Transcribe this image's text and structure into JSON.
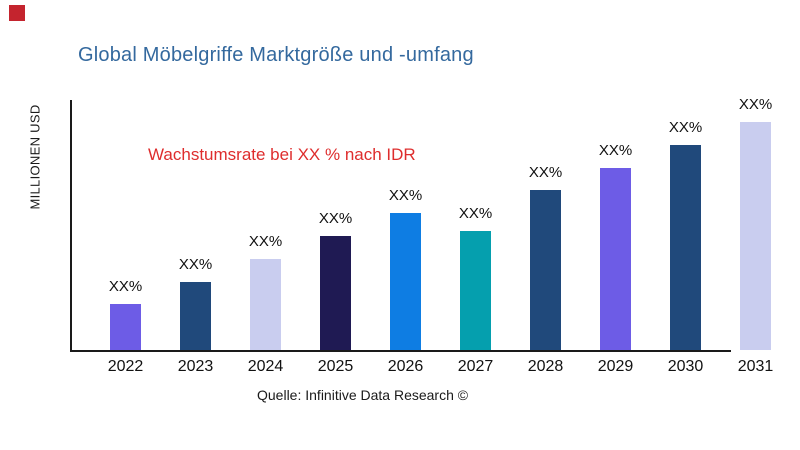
{
  "decor": {
    "corner_square_color": "#c4242e"
  },
  "header": {
    "title": "Global Möbelgriffe Marktgröße und -umfang",
    "title_color": "#34699e"
  },
  "annotation": {
    "text": "Wachstumsrate bei XX % nach IDR",
    "color": "#de2d2d"
  },
  "y_axis": {
    "label": "MILLIONEN USD"
  },
  "source": {
    "text": "Quelle: Infinitive Data Research ©"
  },
  "chart_data": {
    "type": "bar",
    "title": "Global Möbelgriffe Marktgröße und -umfang",
    "categories": [
      "2022",
      "2023",
      "2024",
      "2025",
      "2026",
      "2027",
      "2028",
      "2029",
      "2030",
      "2031"
    ],
    "values": [
      20,
      30,
      40,
      50,
      60,
      52,
      70,
      80,
      90,
      100
    ],
    "bar_labels": [
      "XX%",
      "XX%",
      "XX%",
      "XX%",
      "XX%",
      "XX%",
      "XX%",
      "XX%",
      "XX%",
      "XX%"
    ],
    "colors": [
      "#6d5ce6",
      "#20497b",
      "#c9cdef",
      "#1f1a53",
      "#0e7de3",
      "#059fae",
      "#20497b",
      "#6d5ce6",
      "#20497b",
      "#c9cdef"
    ],
    "xlabel": "",
    "ylabel": "MILLIONEN USD",
    "ylim": [
      0,
      105
    ],
    "grid": false,
    "legend": false,
    "annotation": "Wachstumsrate bei XX % nach IDR"
  }
}
